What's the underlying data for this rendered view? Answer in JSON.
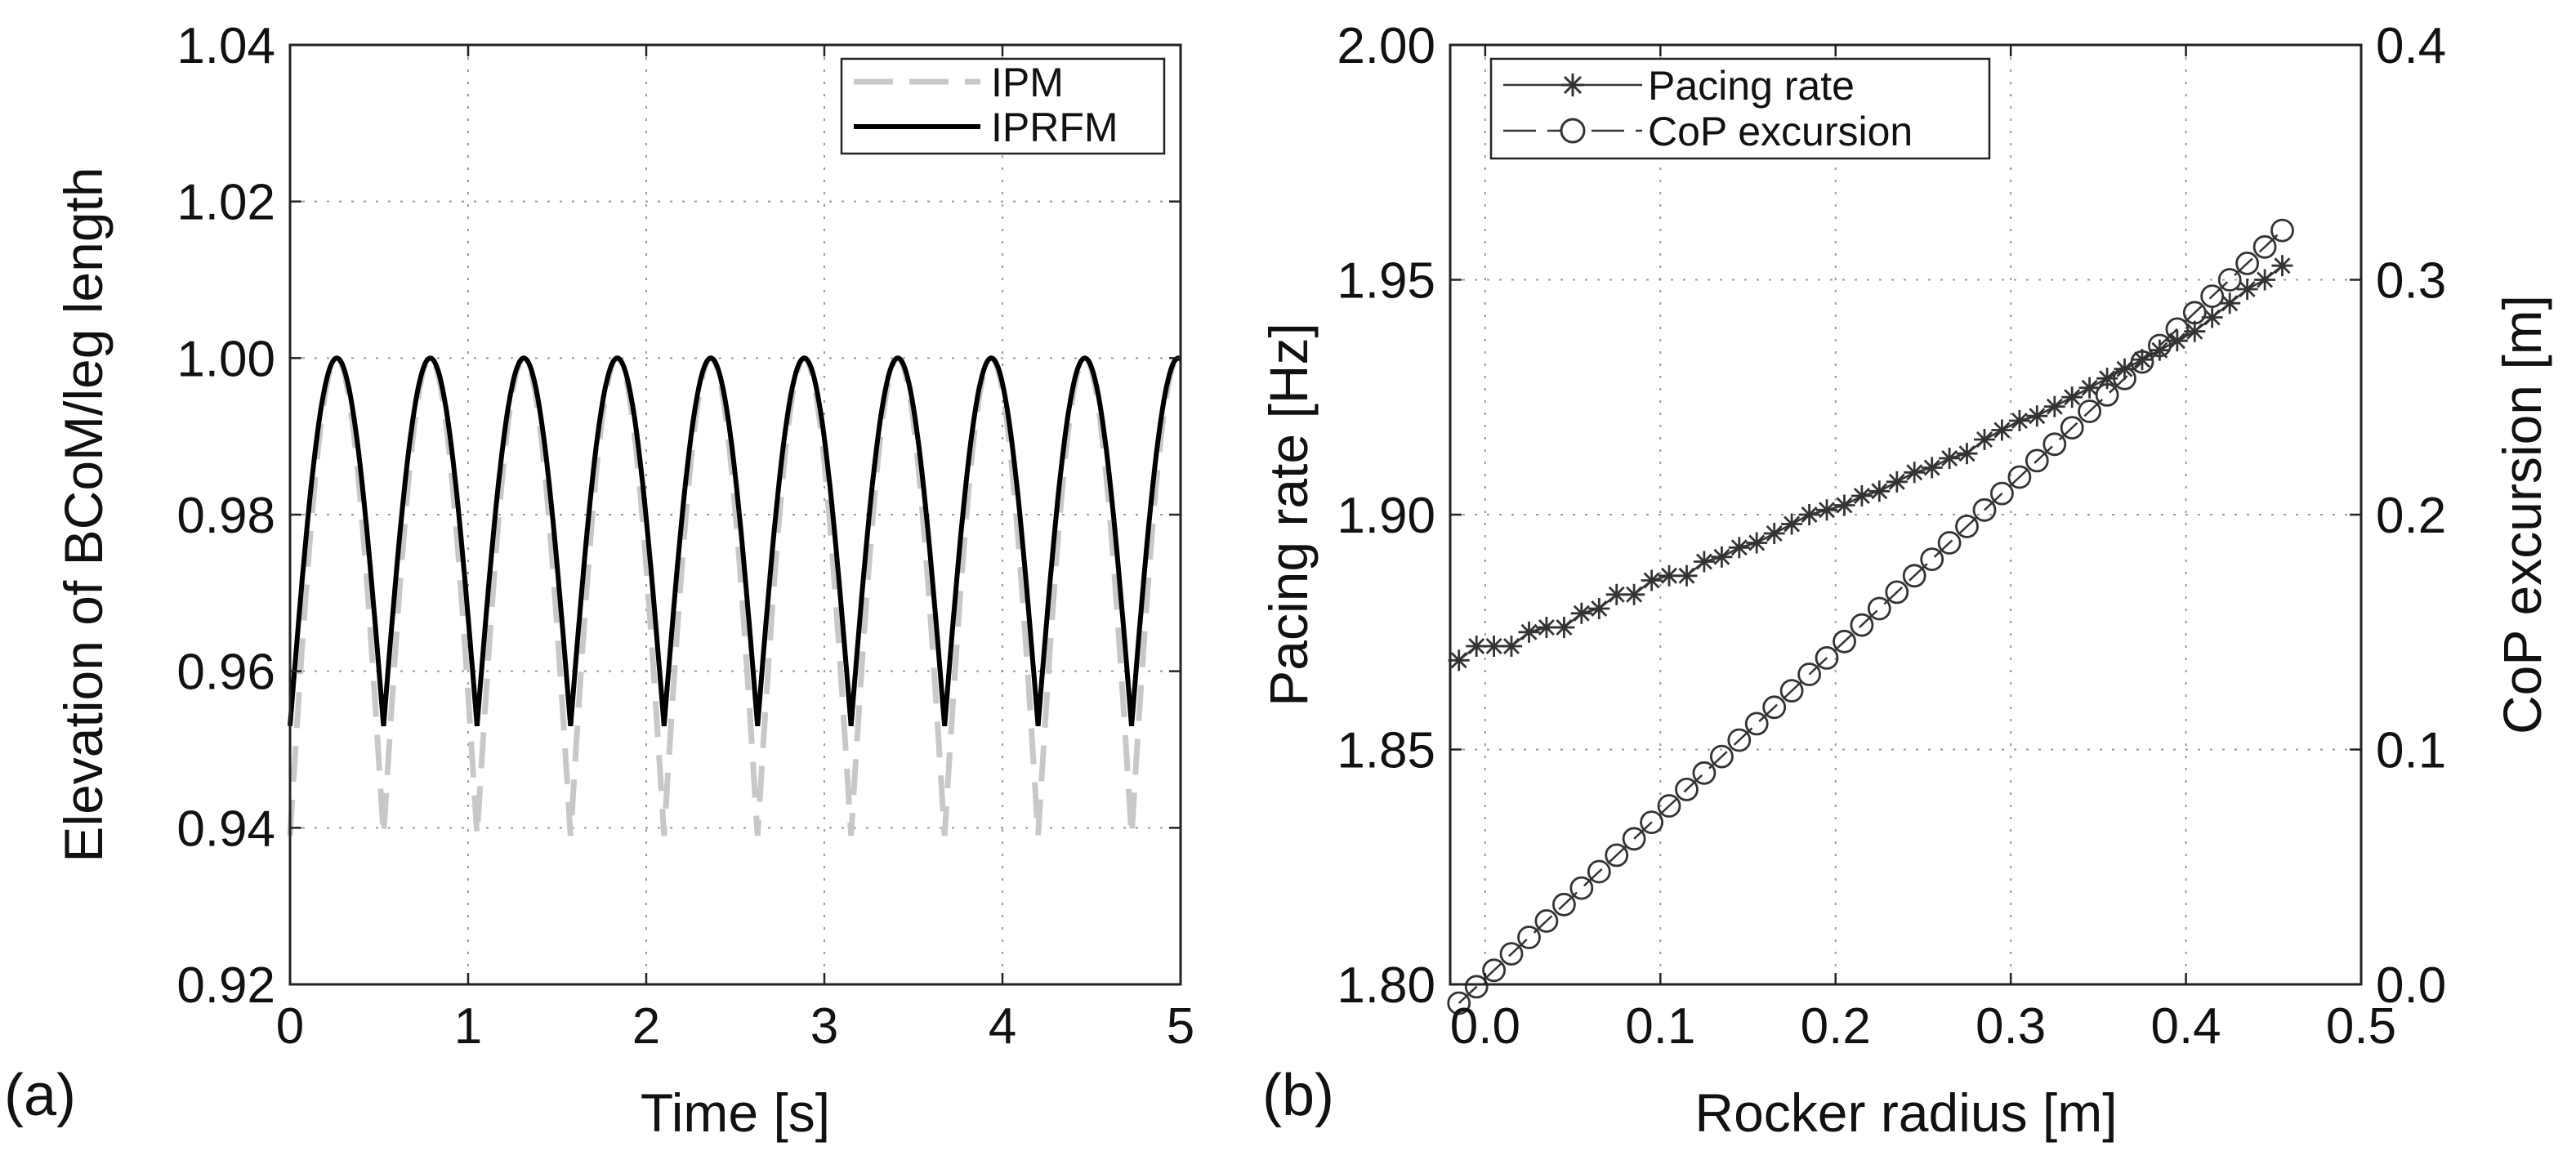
{
  "chart_data": [
    {
      "type": "line",
      "panel_label": "(a)",
      "title": "",
      "xlabel": "Time [s]",
      "ylabel": "Elevation of BCoM/leg length",
      "xlim": [
        0,
        5
      ],
      "ylim": [
        0.92,
        1.04
      ],
      "grid": true,
      "legend_position": "top-right",
      "xticks": [
        0,
        1,
        2,
        3,
        4,
        5
      ],
      "xtick_labels": [
        "0",
        "1",
        "2",
        "3",
        "4",
        "5"
      ],
      "yticks": [
        0.92,
        0.94,
        0.96,
        0.98,
        1.0,
        1.02,
        1.04
      ],
      "ytick_labels": [
        "0.92",
        "0.94",
        "0.96",
        "0.98",
        "1.00",
        "1.02",
        "1.04"
      ],
      "step_period": 0.525,
      "series": [
        {
          "name": "IPM",
          "style": "dashed",
          "color": "#c8c8c8",
          "peak": 1.0,
          "trough": 0.939,
          "description": "inverted pendulum arcs, one per step"
        },
        {
          "name": "IPRFM",
          "style": "solid",
          "color": "#000000",
          "peak": 1.0,
          "trough": 0.953,
          "description": "rocker-foot inverted pendulum arcs, one per step"
        }
      ]
    },
    {
      "type": "line",
      "panel_label": "(b)",
      "title": "",
      "xlabel": "Rocker radius [m]",
      "ylabel": "Pacing rate [Hz]",
      "y2label": "CoP excursion [m]",
      "xlim": [
        -0.02,
        0.5
      ],
      "ylim": [
        1.8,
        2.0
      ],
      "y2lim": [
        0.0,
        0.4
      ],
      "grid": true,
      "legend_position": "top-left",
      "xticks": [
        0.0,
        0.1,
        0.2,
        0.3,
        0.4,
        0.5
      ],
      "xtick_labels": [
        "0.0",
        "0.1",
        "0.2",
        "0.3",
        "0.4",
        "0.5"
      ],
      "yticks": [
        1.8,
        1.85,
        1.9,
        1.95,
        2.0
      ],
      "ytick_labels": [
        "1.80",
        "1.85",
        "1.90",
        "1.95",
        "2.00"
      ],
      "y2ticks": [
        0.0,
        0.1,
        0.2,
        0.3,
        0.4
      ],
      "y2tick_labels": [
        "0.0",
        "0.1",
        "0.2",
        "0.3",
        "0.4"
      ],
      "series": [
        {
          "name": "Pacing rate",
          "axis": "left",
          "marker": "star",
          "color": "#333333",
          "x": [
            -0.015,
            -0.005,
            0.005,
            0.015,
            0.025,
            0.035,
            0.045,
            0.055,
            0.065,
            0.075,
            0.085,
            0.095,
            0.105,
            0.115,
            0.125,
            0.135,
            0.145,
            0.155,
            0.165,
            0.175,
            0.185,
            0.195,
            0.205,
            0.215,
            0.225,
            0.235,
            0.245,
            0.255,
            0.265,
            0.275,
            0.285,
            0.295,
            0.305,
            0.315,
            0.325,
            0.335,
            0.345,
            0.355,
            0.365,
            0.375,
            0.385,
            0.395,
            0.405,
            0.415,
            0.425,
            0.435,
            0.445,
            0.455
          ],
          "values": [
            1.869,
            1.872,
            1.872,
            1.872,
            1.875,
            1.876,
            1.876,
            1.879,
            1.88,
            1.883,
            1.883,
            1.886,
            1.887,
            1.887,
            1.89,
            1.891,
            1.893,
            1.894,
            1.896,
            1.898,
            1.9,
            1.901,
            1.902,
            1.904,
            1.905,
            1.907,
            1.909,
            1.91,
            1.912,
            1.913,
            1.916,
            1.918,
            1.92,
            1.921,
            1.923,
            1.925,
            1.927,
            1.929,
            1.931,
            1.933,
            1.935,
            1.937,
            1.939,
            1.942,
            1.945,
            1.948,
            1.95,
            1.953
          ]
        },
        {
          "name": "CoP excursion",
          "axis": "right",
          "marker": "circle",
          "color": "#333333",
          "x": [
            -0.015,
            -0.005,
            0.005,
            0.015,
            0.025,
            0.035,
            0.045,
            0.055,
            0.065,
            0.075,
            0.085,
            0.095,
            0.105,
            0.115,
            0.125,
            0.135,
            0.145,
            0.155,
            0.165,
            0.175,
            0.185,
            0.195,
            0.205,
            0.215,
            0.225,
            0.235,
            0.245,
            0.255,
            0.265,
            0.275,
            0.285,
            0.295,
            0.305,
            0.315,
            0.325,
            0.335,
            0.345,
            0.355,
            0.365,
            0.375,
            0.385,
            0.395,
            0.405,
            0.415,
            0.425,
            0.435,
            0.445,
            0.455
          ],
          "values": [
            -0.008,
            -0.001,
            0.006,
            0.013,
            0.02,
            0.027,
            0.034,
            0.041,
            0.048,
            0.055,
            0.062,
            0.069,
            0.076,
            0.083,
            0.09,
            0.097,
            0.104,
            0.111,
            0.118,
            0.125,
            0.132,
            0.139,
            0.146,
            0.153,
            0.16,
            0.167,
            0.174,
            0.181,
            0.188,
            0.195,
            0.202,
            0.209,
            0.216,
            0.223,
            0.23,
            0.237,
            0.244,
            0.251,
            0.258,
            0.265,
            0.272,
            0.279,
            0.286,
            0.293,
            0.3,
            0.307,
            0.314,
            0.321
          ]
        }
      ]
    }
  ]
}
